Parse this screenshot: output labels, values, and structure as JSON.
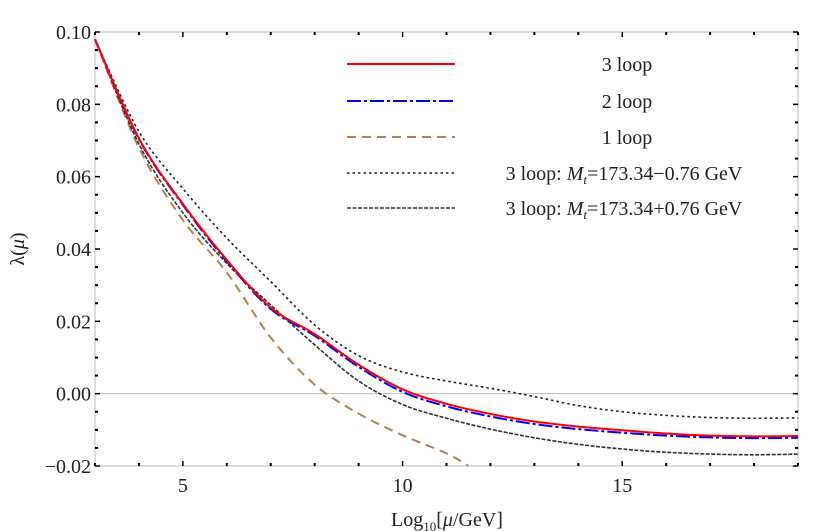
{
  "chart_data": {
    "type": "line",
    "title": "",
    "xlabel": {
      "prefix": "Log",
      "sub": "10",
      "rest_open": "[",
      "mu": "μ",
      "rest_close": "/GeV]"
    },
    "ylabel": {
      "lambda": "λ(",
      "mu": "μ",
      "close": ")"
    },
    "xlim": [
      3,
      19
    ],
    "ylim": [
      -0.02,
      0.1
    ],
    "xticks": [
      5,
      10,
      15
    ],
    "xtick_labels": [
      "5",
      "10",
      "15"
    ],
    "yticks": [
      -0.02,
      0.0,
      0.02,
      0.04,
      0.06,
      0.08,
      0.1
    ],
    "ytick_labels": [
      "−0.02",
      "0.00",
      "0.02",
      "0.04",
      "0.06",
      "0.08",
      "0.10"
    ],
    "grid": "horizontal line at y=0 only",
    "legend_position": "top-right",
    "series": [
      {
        "name": "3 loop",
        "color": "#ff0000",
        "style": "solid",
        "x": [
          3,
          4,
          5,
          6,
          7,
          8,
          9,
          10,
          11,
          12,
          13,
          14,
          15,
          16,
          17,
          18,
          19
        ],
        "y": [
          0.098,
          0.0706,
          0.0525,
          0.037,
          0.0238,
          0.0165,
          0.008,
          0.0012,
          -0.0028,
          -0.0056,
          -0.0077,
          -0.0091,
          -0.0101,
          -0.011,
          -0.0116,
          -0.0118,
          -0.0117
        ]
      },
      {
        "name": "2 loop",
        "color": "#0000ff",
        "style": "dashdot",
        "x": [
          3,
          4,
          5,
          6,
          7,
          8,
          9,
          10,
          11,
          12,
          13,
          14,
          15,
          16,
          17,
          18,
          19
        ],
        "y": [
          0.098,
          0.0704,
          0.0522,
          0.0366,
          0.0234,
          0.016,
          0.0074,
          0.0005,
          -0.0035,
          -0.0063,
          -0.0084,
          -0.0098,
          -0.0108,
          -0.0116,
          -0.0121,
          -0.0123,
          -0.0122
        ]
      },
      {
        "name": "1 loop",
        "color": "#b5834a",
        "style": "dashed",
        "x": [
          3,
          4,
          5,
          6,
          7,
          8,
          9,
          10,
          11,
          11.5
        ],
        "y": [
          0.098,
          0.068,
          0.048,
          0.0335,
          0.0155,
          0.0025,
          -0.0055,
          -0.0115,
          -0.0165,
          -0.02
        ]
      },
      {
        "name": "3 loop: M_t=173.34−0.76 GeV",
        "color": "#222222",
        "style": "dotted",
        "x": [
          3,
          4,
          5,
          6,
          7,
          8,
          9,
          10,
          11,
          12,
          13,
          14,
          15,
          16,
          17,
          18,
          19
        ],
        "y": [
          0.098,
          0.0725,
          0.0567,
          0.043,
          0.031,
          0.019,
          0.0105,
          0.006,
          0.0035,
          0.0015,
          -0.0008,
          -0.0033,
          -0.005,
          -0.006,
          -0.0066,
          -0.0068,
          -0.0067
        ]
      },
      {
        "name": "3 loop: M_t=173.34+0.76 GeV",
        "color": "#333333",
        "style": "fine-dashed",
        "x": [
          3,
          4,
          5,
          6,
          7,
          8,
          9,
          10,
          11,
          12,
          13,
          14,
          15,
          16,
          17,
          18,
          19
        ],
        "y": [
          0.098,
          0.069,
          0.05,
          0.036,
          0.0245,
          0.0135,
          0.0035,
          -0.003,
          -0.0068,
          -0.0098,
          -0.0122,
          -0.014,
          -0.0153,
          -0.0162,
          -0.0167,
          -0.0169,
          -0.0167
        ]
      }
    ],
    "legend": [
      {
        "prefix": "3 loop",
        "sym": "",
        "sub": "",
        "suffix": ""
      },
      {
        "prefix": "2 loop",
        "sym": "",
        "sub": "",
        "suffix": ""
      },
      {
        "prefix": "1 loop",
        "sym": "",
        "sub": "",
        "suffix": ""
      },
      {
        "prefix": "3 loop: ",
        "sym": "M",
        "sub": "t",
        "suffix": "=173.34−0.76 GeV"
      },
      {
        "prefix": "3 loop: ",
        "sym": "M",
        "sub": "t",
        "suffix": "=173.34+0.76 GeV"
      }
    ]
  }
}
